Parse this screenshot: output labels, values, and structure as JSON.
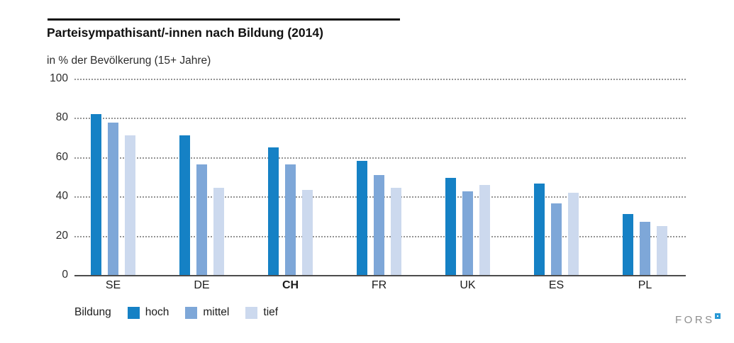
{
  "title": "Parteisympathisant/-innen nach Bildung (2014)",
  "subtitle": "in % der Bevölkerung (15+ Jahre)",
  "legend": {
    "label": "Bildung",
    "items": [
      {
        "name": "hoch",
        "color": "#1581c5"
      },
      {
        "name": "mittel",
        "color": "#7ea7d8"
      },
      {
        "name": "tief",
        "color": "#ccd9ee"
      }
    ]
  },
  "logo": {
    "text": "FORS"
  },
  "chart_data": {
    "type": "bar",
    "title": "Parteisympathisant/-innen nach Bildung (2014)",
    "subtitle": "in % der Bevölkerung (15+ Jahre)",
    "categories": [
      "SE",
      "DE",
      "CH",
      "FR",
      "UK",
      "ES",
      "PL"
    ],
    "bold_category": "CH",
    "series": [
      {
        "name": "hoch",
        "color": "#1581c5",
        "values": [
          82,
          71,
          65,
          58,
          49.5,
          46.5,
          31
        ]
      },
      {
        "name": "mittel",
        "color": "#7ea7d8",
        "values": [
          77.5,
          56.5,
          56.5,
          51,
          42.5,
          36.5,
          27
        ]
      },
      {
        "name": "tief",
        "color": "#ccd9ee",
        "values": [
          71,
          44.5,
          43.5,
          44.5,
          46,
          42,
          25
        ]
      }
    ],
    "xlabel": "",
    "ylabel": "in % der Bevölkerung (15+ Jahre)",
    "ylim": [
      0,
      100
    ],
    "yticks": [
      0,
      20,
      40,
      60,
      80,
      100
    ],
    "grid": "horizontal-dotted",
    "legend_position": "bottom-left"
  }
}
